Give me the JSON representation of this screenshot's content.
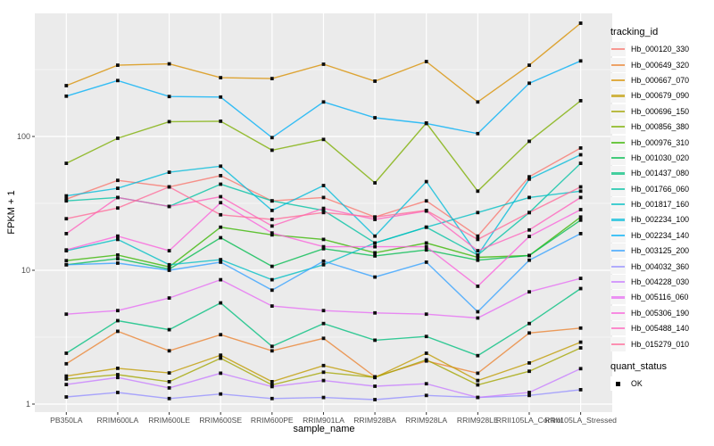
{
  "figure": {
    "background": "#FFFFFF",
    "panel_bg": "#EBEBEB",
    "grid_color": "#FFFFFF",
    "tick_label_color": "#4D4D4D",
    "axis_title_color": "#000000",
    "point_color": "#0D0D0D",
    "legend_key_bg": "#F4F4F4"
  },
  "chart_data": {
    "type": "line",
    "title": "",
    "xlabel": "sample_name",
    "ylabel": "FPKM + 1",
    "y_scale": "log10",
    "ylim": [
      0.87,
      845
    ],
    "y_ticks": [
      "1",
      "10",
      "100"
    ],
    "y_tick_values": [
      1,
      10,
      100
    ],
    "y_minor_values": [
      3.162,
      31.62,
      316.2
    ],
    "grid": "on",
    "point_shape": "filled-square",
    "categories": [
      "PB350LA",
      "RRIM600LA",
      "RRIM600LE",
      "RRIM600SE",
      "RRIM600PE",
      "RRIM901LA",
      "RRIM928BA",
      "RRIM928LA",
      "RRIM928LE",
      "RRII105LA_Control",
      "RRII105LA_Stressed"
    ],
    "legend": {
      "title": "tracking_id",
      "position": "right",
      "second_title": "quant_status",
      "second_items": [
        "OK"
      ]
    },
    "series": [
      {
        "name": "Hb_000120_330",
        "color": "#F8766D",
        "values": [
          34,
          47,
          42,
          51,
          33,
          35,
          25,
          33,
          18,
          50,
          82
        ]
      },
      {
        "name": "Hb_000649_320",
        "color": "#EA8331",
        "values": [
          2.0,
          3.5,
          2.5,
          3.3,
          2.5,
          3.1,
          1.6,
          2.1,
          1.7,
          3.4,
          3.7
        ]
      },
      {
        "name": "Hb_000667_070",
        "color": "#D89000",
        "values": [
          240,
          341,
          349,
          275,
          271,
          347,
          259,
          363,
          181,
          341,
          703
        ]
      },
      {
        "name": "Hb_000679_090",
        "color": "#C09B00",
        "values": [
          1.62,
          1.85,
          1.71,
          2.32,
          1.47,
          1.94,
          1.58,
          2.4,
          1.5,
          2.03,
          2.9
        ]
      },
      {
        "name": "Hb_000696_150",
        "color": "#A3A500",
        "values": [
          1.54,
          1.66,
          1.47,
          2.2,
          1.39,
          1.73,
          1.58,
          2.14,
          1.39,
          1.76,
          2.63
        ]
      },
      {
        "name": "Hb_000856_380",
        "color": "#7CAE00",
        "values": [
          63,
          97,
          129,
          130,
          79,
          95,
          45,
          126,
          39,
          92,
          185
        ]
      },
      {
        "name": "Hb_000976_310",
        "color": "#39B600",
        "values": [
          11.8,
          13,
          10.6,
          21,
          18.4,
          17,
          13.5,
          16,
          12.5,
          12.9,
          25
        ]
      },
      {
        "name": "Hb_001030_020",
        "color": "#00BB4E",
        "values": [
          11,
          12.2,
          10.2,
          17.5,
          10.7,
          14.5,
          12.8,
          14.2,
          11.9,
          12.9,
          23.7
        ]
      },
      {
        "name": "Hb_001437_080",
        "color": "#00BF7D",
        "values": [
          2.4,
          4.2,
          3.6,
          5.7,
          2.7,
          4.0,
          3.0,
          3.2,
          2.3,
          4.0,
          7.3
        ]
      },
      {
        "name": "Hb_001766_060",
        "color": "#00C1A3",
        "values": [
          33,
          35,
          30,
          44,
          33,
          28,
          16,
          21,
          13,
          27,
          63
        ]
      },
      {
        "name": "Hb_001817_160",
        "color": "#00BFC4",
        "values": [
          14,
          17,
          11,
          12,
          8.5,
          11,
          16,
          21,
          27,
          35,
          39
        ]
      },
      {
        "name": "Hb_002234_100",
        "color": "#00BBDA",
        "values": [
          36,
          41,
          54,
          60,
          28,
          43,
          18,
          46,
          13,
          48,
          73
        ]
      },
      {
        "name": "Hb_002234_140",
        "color": "#00B0F6",
        "values": [
          200,
          262,
          199,
          197,
          98,
          181,
          138,
          125,
          105,
          250,
          367
        ]
      },
      {
        "name": "Hb_003125_200",
        "color": "#35A2FF",
        "values": [
          11,
          11.3,
          10,
          11.5,
          7.1,
          11.7,
          8.9,
          11.5,
          4.9,
          11.9,
          18.8
        ]
      },
      {
        "name": "Hb_004032_360",
        "color": "#9590FF",
        "values": [
          1.13,
          1.22,
          1.1,
          1.19,
          1.1,
          1.12,
          1.08,
          1.16,
          1.12,
          1.16,
          1.28
        ]
      },
      {
        "name": "Hb_004228_030",
        "color": "#C77CFF",
        "values": [
          1.4,
          1.58,
          1.32,
          1.7,
          1.35,
          1.5,
          1.36,
          1.42,
          1.12,
          1.22,
          1.84
        ]
      },
      {
        "name": "Hb_005116_060",
        "color": "#E76BF3",
        "values": [
          4.7,
          5.0,
          6.2,
          8.5,
          5.4,
          5.0,
          4.8,
          4.7,
          4.4,
          6.9,
          8.7
        ]
      },
      {
        "name": "Hb_005306_190",
        "color": "#FA62DB",
        "values": [
          14.2,
          18,
          14,
          32,
          19,
          15,
          15,
          15,
          7.6,
          17.9,
          28.4
        ]
      },
      {
        "name": "Hb_005488_140",
        "color": "#FF62BC",
        "values": [
          18.8,
          35,
          30,
          35.5,
          21.4,
          29,
          24,
          27.7,
          14,
          20,
          35
        ]
      },
      {
        "name": "Hb_015279_010",
        "color": "#FF6A98",
        "values": [
          24.3,
          29.2,
          42,
          26,
          24,
          27,
          25,
          28,
          17,
          27,
          42
        ]
      }
    ]
  }
}
